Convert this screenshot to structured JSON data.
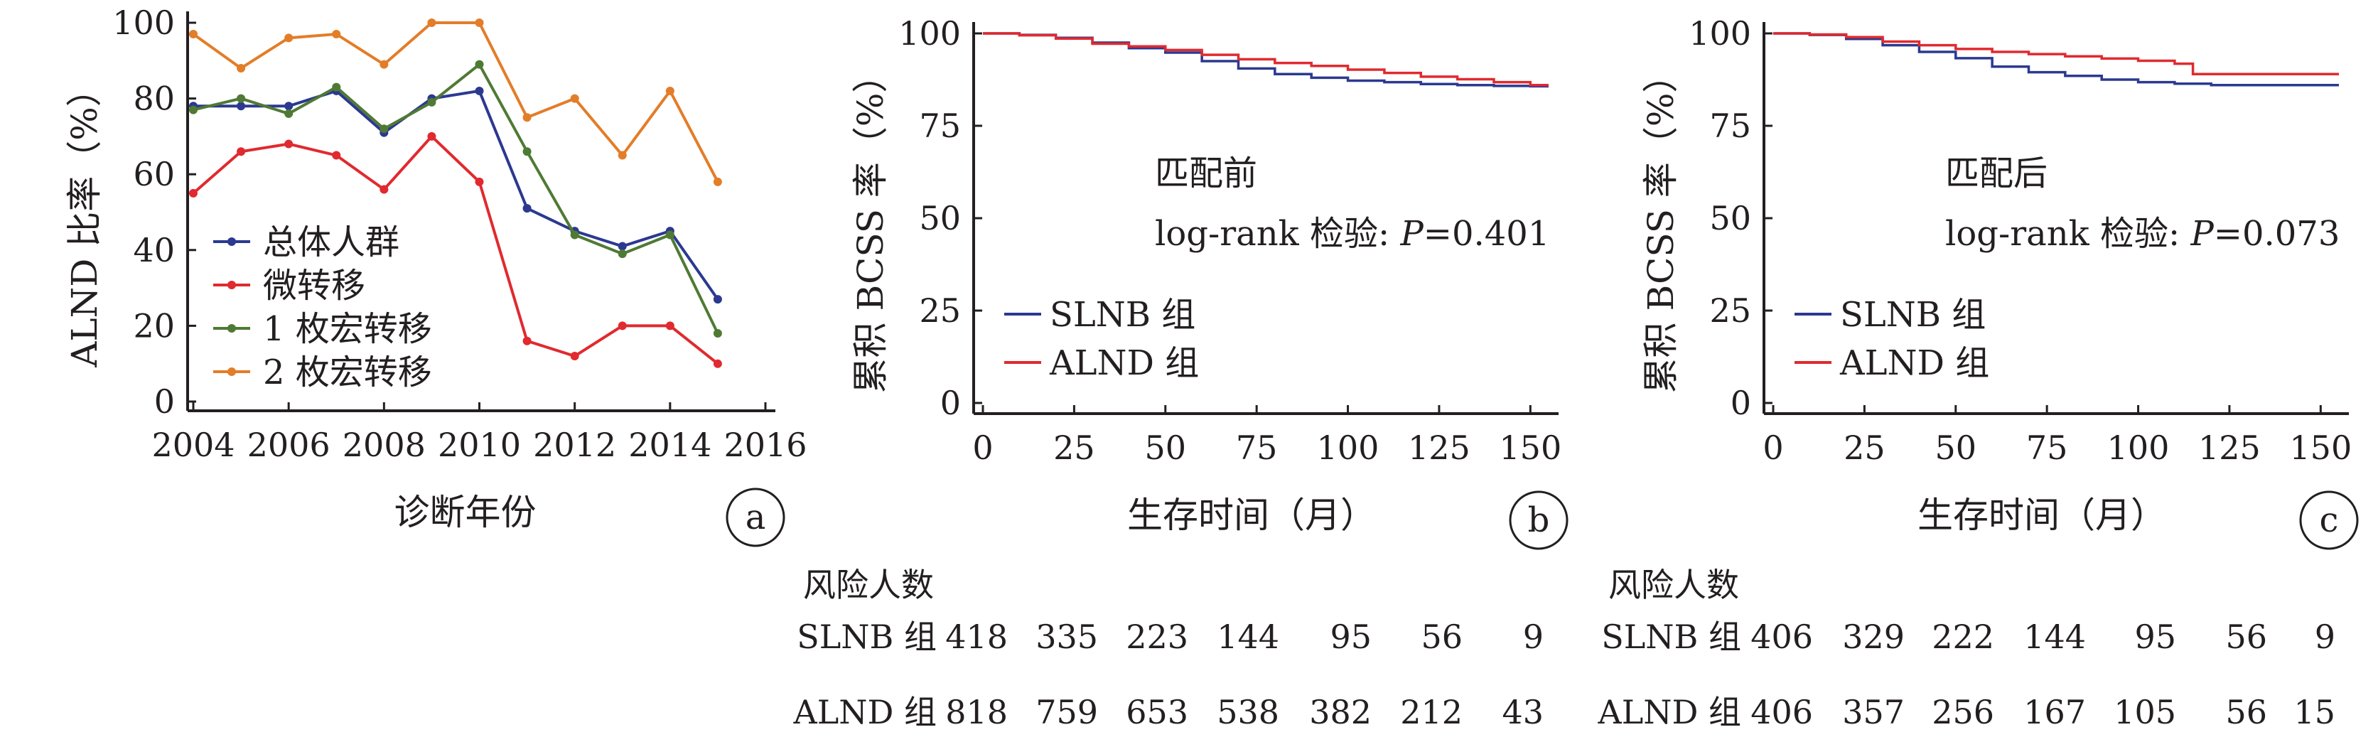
{
  "colors": {
    "axis": "#231f20",
    "overall": "#2b3990",
    "micro": "#e02a2f",
    "macro1": "#4f7a34",
    "macro2": "#e37d28",
    "slnb": "#2b3990",
    "alnd": "#e02a2f"
  },
  "chart_data": [
    {
      "type": "line",
      "panel_label": "a",
      "title": "",
      "xlabel": "诊断年份",
      "ylabel": "ALND 比率（%）",
      "xlim": [
        2004,
        2016
      ],
      "ylim": [
        0,
        100
      ],
      "xticks": [
        2004,
        2006,
        2008,
        2010,
        2012,
        2014,
        2016
      ],
      "yticks": [
        0,
        20,
        40,
        60,
        80,
        100
      ],
      "legend_position": "lower-left",
      "x": [
        2004,
        2005,
        2006,
        2007,
        2008,
        2009,
        2010,
        2011,
        2012,
        2013,
        2014,
        2015
      ],
      "series": [
        {
          "name": "总体人群",
          "color": "#2b3990",
          "values": [
            78,
            78,
            78,
            82,
            71,
            80,
            82,
            51,
            45,
            41,
            45,
            27
          ]
        },
        {
          "name": "微转移",
          "color": "#e02a2f",
          "values": [
            55,
            66,
            68,
            65,
            56,
            70,
            58,
            16,
            12,
            20,
            20,
            10
          ]
        },
        {
          "name": "1 枚宏转移",
          "color": "#4f7a34",
          "values": [
            77,
            80,
            76,
            83,
            72,
            79,
            89,
            66,
            44,
            39,
            44,
            18
          ]
        },
        {
          "name": "2 枚宏转移",
          "color": "#e37d28",
          "values": [
            97,
            88,
            96,
            97,
            89,
            100,
            100,
            75,
            80,
            65,
            82,
            58
          ]
        }
      ]
    },
    {
      "type": "line",
      "panel_label": "b",
      "title": "",
      "xlabel": "生存时间（月）",
      "ylabel": "累积 BCSS 率（%）",
      "xlim": [
        0,
        155
      ],
      "ylim": [
        0,
        100
      ],
      "xticks": [
        0,
        25,
        50,
        75,
        100,
        125,
        150
      ],
      "yticks": [
        0,
        25,
        50,
        75,
        100
      ],
      "annotation_title": "匹配前",
      "annotation_test": "log-rank 检验: ",
      "annotation_p": "P",
      "annotation_value": "=0.401",
      "legend_position": "lower-left",
      "series": [
        {
          "name": "SLNB 组",
          "color": "#2b3990",
          "x": [
            0,
            10,
            20,
            30,
            40,
            50,
            60,
            70,
            80,
            90,
            100,
            110,
            120,
            130,
            140,
            150,
            155
          ],
          "values": [
            100,
            99.6,
            98.8,
            97.5,
            96,
            94.8,
            92.5,
            90.5,
            89,
            88,
            87.2,
            86.8,
            86.3,
            86,
            85.8,
            85.7,
            85.7
          ]
        },
        {
          "name": "ALND 组",
          "color": "#e02a2f",
          "x": [
            0,
            10,
            20,
            30,
            40,
            50,
            60,
            70,
            80,
            90,
            100,
            110,
            120,
            130,
            140,
            150,
            155
          ],
          "values": [
            100,
            99.5,
            98.6,
            97.2,
            96.5,
            95.5,
            94.2,
            93,
            92,
            91.2,
            90.2,
            89.3,
            88.3,
            87.6,
            86.8,
            86,
            86
          ]
        }
      ],
      "risk_table": {
        "heading": "风险人数",
        "rows": [
          {
            "label": "SLNB 组",
            "values": [
              "418",
              "335",
              "223",
              "144",
              "95",
              "56",
              "9"
            ]
          },
          {
            "label": "ALND 组",
            "values": [
              "818",
              "759",
              "653",
              "538",
              "382",
              "212",
              "43"
            ]
          }
        ]
      }
    },
    {
      "type": "line",
      "panel_label": "c",
      "title": "",
      "xlabel": "生存时间（月）",
      "ylabel": "累积 BCSS 率（%）",
      "xlim": [
        0,
        155
      ],
      "ylim": [
        0,
        100
      ],
      "xticks": [
        0,
        25,
        50,
        75,
        100,
        125,
        150
      ],
      "yticks": [
        0,
        25,
        50,
        75,
        100
      ],
      "annotation_title": "匹配后",
      "annotation_test": "log-rank 检验: ",
      "annotation_p": "P",
      "annotation_value": "=0.073",
      "legend_position": "lower-left",
      "series": [
        {
          "name": "SLNB 组",
          "color": "#2b3990",
          "x": [
            0,
            10,
            20,
            30,
            40,
            50,
            60,
            70,
            80,
            90,
            100,
            110,
            120,
            130,
            140,
            150,
            155
          ],
          "values": [
            100,
            99.6,
            98.5,
            96.8,
            95,
            93.3,
            91,
            89.5,
            88.5,
            87.5,
            86.8,
            86.4,
            86,
            86,
            86,
            86,
            86
          ]
        },
        {
          "name": "ALND 组",
          "color": "#e02a2f",
          "x": [
            0,
            10,
            20,
            30,
            40,
            50,
            60,
            70,
            80,
            90,
            100,
            110,
            115,
            120,
            130,
            140,
            150,
            155
          ],
          "values": [
            100,
            99.7,
            99,
            97.8,
            96.8,
            95.8,
            95,
            94.4,
            93.8,
            93.2,
            92.6,
            91.8,
            89,
            89,
            89,
            89,
            89,
            89
          ]
        }
      ],
      "risk_table": {
        "heading": "风险人数",
        "rows": [
          {
            "label": "SLNB 组",
            "values": [
              "406",
              "329",
              "222",
              "144",
              "95",
              "56",
              "9"
            ]
          },
          {
            "label": "ALND 组",
            "values": [
              "406",
              "357",
              "256",
              "167",
              "105",
              "56",
              "15"
            ]
          }
        ]
      }
    }
  ]
}
